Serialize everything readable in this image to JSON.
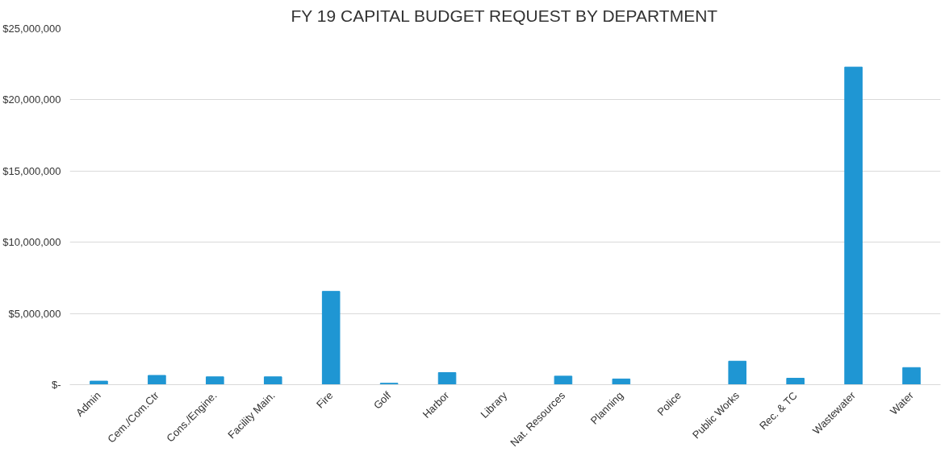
{
  "chart_data": {
    "type": "bar",
    "title": "FY 19 CAPITAL BUDGET REQUEST BY DEPARTMENT",
    "categories": [
      "Admin",
      "Cem./Com.Ctr",
      "Cons./Engine.",
      "Facility Main.",
      "Fire",
      "Golf",
      "Harbor",
      "Library",
      "Nat. Resources",
      "Planning",
      "Police",
      "Public Works",
      "Rec. & TC",
      "Wastewater",
      "Water"
    ],
    "values": [
      250000,
      650000,
      550000,
      550000,
      6550000,
      100000,
      850000,
      0,
      600000,
      400000,
      0,
      1650000,
      450000,
      22300000,
      1200000
    ],
    "color": "#1f96d3",
    "ylim": [
      0,
      25000000
    ],
    "yticks": [
      {
        "value": 0,
        "label": "$-"
      },
      {
        "value": 5000000,
        "label": "$5,000,000"
      },
      {
        "value": 10000000,
        "label": "$10,000,000"
      },
      {
        "value": 15000000,
        "label": "$15,000,000"
      },
      {
        "value": 20000000,
        "label": "$20,000,000"
      },
      {
        "value": 25000000,
        "label": "$25,000,000"
      }
    ],
    "grid": "y"
  }
}
